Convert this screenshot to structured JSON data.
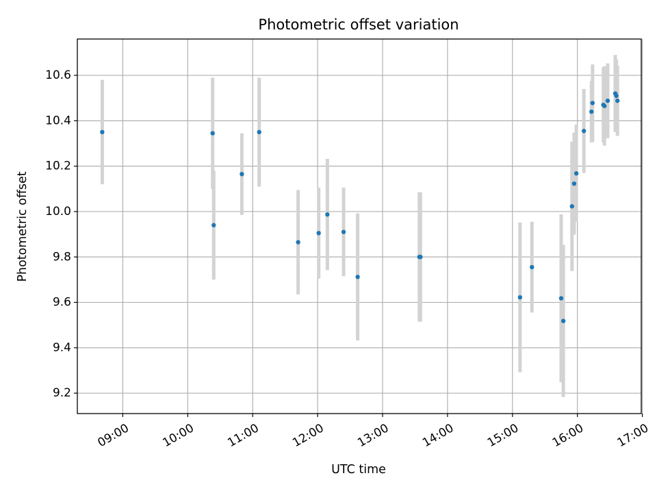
{
  "chart_data": {
    "type": "scatter",
    "title": "Photometric offset variation",
    "xlabel": "UTC time",
    "ylabel": "Photometric offset",
    "x_ticks": [
      "09:00",
      "10:00",
      "11:00",
      "12:00",
      "13:00",
      "14:00",
      "15:00",
      "16:00",
      "17:00"
    ],
    "y_ticks": [
      "9.2",
      "9.4",
      "9.6",
      "9.8",
      "10.0",
      "10.2",
      "10.4",
      "10.6"
    ],
    "xlim": [
      "08:18",
      "16:59"
    ],
    "ylim": [
      9.11,
      10.76
    ],
    "grid": true,
    "marker_color": "#1f77b4",
    "errorbar_color": "#d3d3d3",
    "series": [
      {
        "points": [
          {
            "x": "08:41",
            "y": 10.35,
            "err": 0.23
          },
          {
            "x": "10:23",
            "y": 10.345,
            "err": 0.245
          },
          {
            "x": "10:24",
            "y": 9.94,
            "err": 0.24
          },
          {
            "x": "10:50",
            "y": 10.165,
            "err": 0.18
          },
          {
            "x": "11:06",
            "y": 10.35,
            "err": 0.24
          },
          {
            "x": "11:42",
            "y": 9.865,
            "err": 0.23
          },
          {
            "x": "12:01",
            "y": 9.905,
            "err": 0.2
          },
          {
            "x": "12:09",
            "y": 9.987,
            "err": 0.245
          },
          {
            "x": "12:24",
            "y": 9.91,
            "err": 0.195
          },
          {
            "x": "12:37",
            "y": 9.712,
            "err": 0.28
          },
          {
            "x": "13:34",
            "y": 9.8,
            "err": 0.285
          },
          {
            "x": "13:35",
            "y": 9.8,
            "err": 0.285
          },
          {
            "x": "15:07",
            "y": 9.622,
            "err": 0.33
          },
          {
            "x": "15:18",
            "y": 9.755,
            "err": 0.2
          },
          {
            "x": "15:45",
            "y": 9.618,
            "err": 0.37
          },
          {
            "x": "15:47",
            "y": 9.518,
            "err": 0.335
          },
          {
            "x": "15:55",
            "y": 10.023,
            "err": 0.285
          },
          {
            "x": "15:57",
            "y": 10.123,
            "err": 0.225
          },
          {
            "x": "15:59",
            "y": 10.168,
            "err": 0.215
          },
          {
            "x": "16:06",
            "y": 10.355,
            "err": 0.185
          },
          {
            "x": "16:13",
            "y": 10.44,
            "err": 0.135
          },
          {
            "x": "16:14",
            "y": 10.478,
            "err": 0.17
          },
          {
            "x": "16:24",
            "y": 10.47,
            "err": 0.165
          },
          {
            "x": "16:25",
            "y": 10.465,
            "err": 0.175
          },
          {
            "x": "16:28",
            "y": 10.488,
            "err": 0.165
          },
          {
            "x": "16:35",
            "y": 10.52,
            "err": 0.17
          },
          {
            "x": "16:36",
            "y": 10.51,
            "err": 0.16
          },
          {
            "x": "16:37",
            "y": 10.488,
            "err": 0.155
          }
        ]
      }
    ]
  }
}
